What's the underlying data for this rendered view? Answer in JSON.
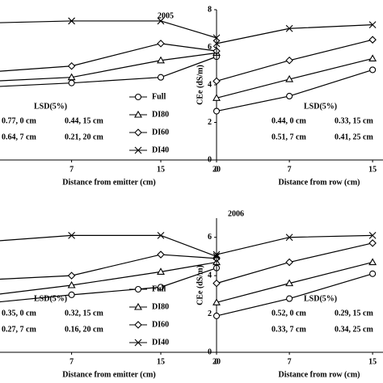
{
  "chart_data": [
    {
      "type": "line",
      "title": "2005",
      "xlabel": "Distance from emitter (cm)",
      "x": [
        0,
        7,
        15,
        20
      ],
      "xlim": [
        0,
        20
      ],
      "xticks": [
        7,
        15,
        20
      ],
      "ylim": [
        0,
        8
      ],
      "legend": true,
      "color": "#000000",
      "series": [
        {
          "name": "Full",
          "marker": "circle",
          "values": [
            3.9,
            4.1,
            4.4,
            5.5
          ]
        },
        {
          "name": "DI80",
          "marker": "triangle",
          "values": [
            4.2,
            4.4,
            5.3,
            5.7
          ]
        },
        {
          "name": "DI60",
          "marker": "diamond",
          "values": [
            4.7,
            5.0,
            6.2,
            5.8
          ]
        },
        {
          "name": "DI40",
          "marker": "x",
          "values": [
            7.3,
            7.4,
            7.4,
            6.5
          ]
        }
      ],
      "annotations": [
        "LSD(5%)",
        "0.77, 0 cm",
        "0.44, 15 cm",
        "0.64, 7 cm",
        "0.21, 20 cm"
      ]
    },
    {
      "type": "line",
      "xlabel": "Distance from row (cm)",
      "ylabel": "CEe (dS/m)",
      "x": [
        0,
        7,
        15
      ],
      "xlim": [
        0,
        16
      ],
      "xticks": [
        0,
        7,
        15
      ],
      "ylim": [
        0,
        8
      ],
      "yticks": [
        0,
        2,
        4,
        6,
        8
      ],
      "legend": false,
      "color": "#000000",
      "series": [
        {
          "marker": "circle",
          "values": [
            2.6,
            3.4,
            4.8
          ]
        },
        {
          "marker": "triangle",
          "values": [
            3.3,
            4.3,
            5.4
          ]
        },
        {
          "marker": "diamond",
          "values": [
            4.2,
            5.3,
            6.4
          ]
        },
        {
          "marker": "x",
          "values": [
            6.2,
            7.0,
            7.2
          ]
        }
      ],
      "annotations": [
        "LSD(5%)",
        "0.44, 0 cm",
        "0.33, 15 cm",
        "0.51, 7 cm",
        "0.41, 25 cm"
      ]
    },
    {
      "type": "line",
      "xlabel": "Distance from emitter (cm)",
      "x": [
        0,
        7,
        15,
        20
      ],
      "xlim": [
        0,
        20
      ],
      "xticks": [
        7,
        15,
        20
      ],
      "ylim": [
        0,
        7
      ],
      "legend": true,
      "color": "#000000",
      "series": [
        {
          "name": "Full",
          "marker": "circle",
          "values": [
            2.6,
            3.0,
            3.4,
            4.4
          ]
        },
        {
          "name": "DI80",
          "marker": "triangle",
          "values": [
            3.0,
            3.5,
            4.2,
            4.7
          ]
        },
        {
          "name": "DI60",
          "marker": "diamond",
          "values": [
            3.8,
            4.0,
            5.1,
            4.9
          ]
        },
        {
          "name": "DI40",
          "marker": "x",
          "values": [
            5.8,
            6.1,
            6.1,
            5.0
          ]
        }
      ],
      "annotations": [
        "LSD(5%)",
        "0.35, 0 cm",
        "0.32, 15 cm",
        "0.27, 7 cm",
        "0.16, 20 cm"
      ]
    },
    {
      "type": "line",
      "title": "2006",
      "xlabel": "Distance from row (cm)",
      "ylabel": "CEe (dS/m)",
      "x": [
        0,
        7,
        15
      ],
      "xlim": [
        0,
        16
      ],
      "xticks": [
        0,
        7,
        15
      ],
      "ylim": [
        0,
        7
      ],
      "yticks": [
        0,
        2,
        4,
        6
      ],
      "legend": false,
      "color": "#000000",
      "series": [
        {
          "marker": "circle",
          "values": [
            1.9,
            2.8,
            4.1
          ]
        },
        {
          "marker": "triangle",
          "values": [
            2.6,
            3.6,
            4.7
          ]
        },
        {
          "marker": "diamond",
          "values": [
            3.6,
            4.7,
            5.7
          ]
        },
        {
          "marker": "x",
          "values": [
            5.1,
            6.0,
            6.1
          ]
        }
      ],
      "annotations": [
        "LSD(5%)",
        "0.52, 0 cm",
        "0.29, 15 cm",
        "0.33, 7 cm",
        "0.34, 25 cm"
      ]
    }
  ]
}
